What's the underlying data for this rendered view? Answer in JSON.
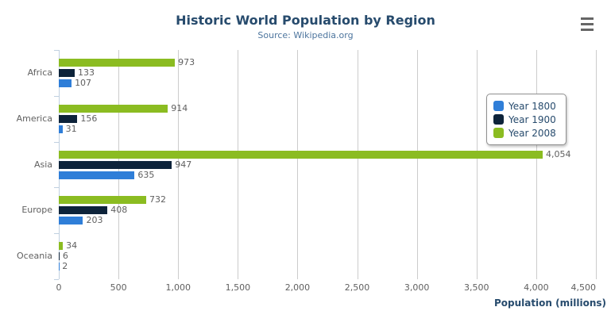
{
  "chart_data": {
    "type": "bar",
    "orientation": "horizontal",
    "title": "Historic World Population by Region",
    "subtitle": "Source: Wikipedia.org",
    "categories": [
      "Africa",
      "America",
      "Asia",
      "Europe",
      "Oceania"
    ],
    "series": [
      {
        "name": "Year 1800",
        "color": "#2f7ed8",
        "values": [
          107,
          31,
          635,
          203,
          2
        ]
      },
      {
        "name": "Year 1900",
        "color": "#0d233a",
        "values": [
          133,
          156,
          947,
          408,
          6
        ]
      },
      {
        "name": "Year 2008",
        "color": "#8bbc21",
        "values": [
          973,
          914,
          4054,
          732,
          34
        ]
      }
    ],
    "bar_order_top_to_bottom": [
      "Year 2008",
      "Year 1900",
      "Year 1800"
    ],
    "data_labels": true,
    "xlabel": "Population (millions)",
    "ylabel": "",
    "xlim": [
      0,
      4500
    ],
    "x_ticks": [
      "0",
      "500",
      "1,000",
      "1,500",
      "2,000",
      "2,500",
      "3,000",
      "3,500",
      "4,000",
      "4,500"
    ],
    "grid": true,
    "legend_position": "right-inside"
  },
  "colors": {
    "title": "#274b6d",
    "subtitle": "#4d759e",
    "labels": "#606060",
    "gridline": "#cccccc",
    "axis_line": "#c0d0e0",
    "legend_border": "#909090"
  },
  "context_menu": {
    "icon": "hamburger-icon"
  }
}
